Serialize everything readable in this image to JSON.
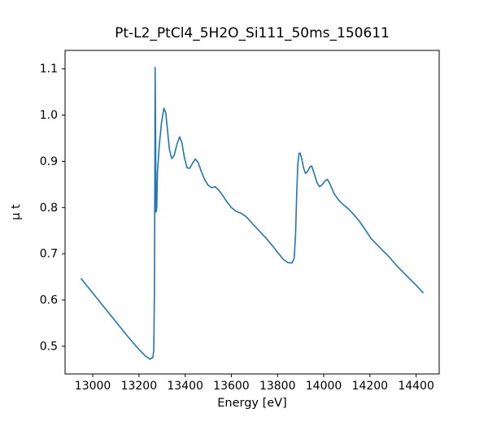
{
  "chart_data": {
    "type": "line",
    "title": "Pt-L2_PtCl4_5H2O_Si111_50ms_150611",
    "xlabel": "Energy [eV]",
    "ylabel": "µ t",
    "xlim": [
      12880,
      14500
    ],
    "ylim": [
      0.44,
      1.14
    ],
    "x_ticks": [
      13000,
      13200,
      13400,
      13600,
      13800,
      14000,
      14200,
      14400
    ],
    "y_ticks": [
      0.5,
      0.6,
      0.7,
      0.8,
      0.9,
      1.0,
      1.1
    ],
    "grid": false,
    "legend_position": "none",
    "line_color": "#1f77b4",
    "frame_color": "#000000",
    "points": [
      [
        12950,
        0.646
      ],
      [
        13000,
        0.615
      ],
      [
        13050,
        0.584
      ],
      [
        13100,
        0.553
      ],
      [
        13150,
        0.522
      ],
      [
        13200,
        0.493
      ],
      [
        13230,
        0.478
      ],
      [
        13248,
        0.472
      ],
      [
        13260,
        0.476
      ],
      [
        13264,
        0.49
      ],
      [
        13267,
        0.62
      ],
      [
        13269,
        0.9
      ],
      [
        13270,
        1.103
      ],
      [
        13272,
        0.96
      ],
      [
        13274,
        0.79
      ],
      [
        13277,
        0.8
      ],
      [
        13280,
        0.875
      ],
      [
        13288,
        0.935
      ],
      [
        13298,
        0.985
      ],
      [
        13308,
        1.015
      ],
      [
        13316,
        1.005
      ],
      [
        13324,
        0.965
      ],
      [
        13332,
        0.925
      ],
      [
        13342,
        0.906
      ],
      [
        13352,
        0.912
      ],
      [
        13365,
        0.938
      ],
      [
        13376,
        0.953
      ],
      [
        13386,
        0.94
      ],
      [
        13396,
        0.91
      ],
      [
        13408,
        0.886
      ],
      [
        13420,
        0.885
      ],
      [
        13432,
        0.896
      ],
      [
        13444,
        0.905
      ],
      [
        13456,
        0.898
      ],
      [
        13470,
        0.878
      ],
      [
        13485,
        0.86
      ],
      [
        13500,
        0.848
      ],
      [
        13515,
        0.843
      ],
      [
        13530,
        0.845
      ],
      [
        13545,
        0.838
      ],
      [
        13560,
        0.828
      ],
      [
        13580,
        0.813
      ],
      [
        13600,
        0.8
      ],
      [
        13620,
        0.792
      ],
      [
        13645,
        0.787
      ],
      [
        13665,
        0.78
      ],
      [
        13690,
        0.766
      ],
      [
        13720,
        0.75
      ],
      [
        13750,
        0.734
      ],
      [
        13780,
        0.716
      ],
      [
        13805,
        0.7
      ],
      [
        13825,
        0.688
      ],
      [
        13845,
        0.681
      ],
      [
        13862,
        0.68
      ],
      [
        13872,
        0.69
      ],
      [
        13878,
        0.74
      ],
      [
        13883,
        0.83
      ],
      [
        13888,
        0.895
      ],
      [
        13893,
        0.917
      ],
      [
        13898,
        0.918
      ],
      [
        13905,
        0.905
      ],
      [
        13913,
        0.885
      ],
      [
        13921,
        0.874
      ],
      [
        13930,
        0.878
      ],
      [
        13940,
        0.888
      ],
      [
        13948,
        0.89
      ],
      [
        13958,
        0.875
      ],
      [
        13970,
        0.855
      ],
      [
        13982,
        0.845
      ],
      [
        13994,
        0.85
      ],
      [
        14006,
        0.858
      ],
      [
        14016,
        0.861
      ],
      [
        14028,
        0.85
      ],
      [
        14045,
        0.83
      ],
      [
        14065,
        0.816
      ],
      [
        14085,
        0.806
      ],
      [
        14105,
        0.798
      ],
      [
        14130,
        0.785
      ],
      [
        14155,
        0.77
      ],
      [
        14180,
        0.752
      ],
      [
        14205,
        0.733
      ],
      [
        14240,
        0.715
      ],
      [
        14280,
        0.695
      ],
      [
        14320,
        0.672
      ],
      [
        14360,
        0.652
      ],
      [
        14400,
        0.632
      ],
      [
        14430,
        0.616
      ]
    ]
  }
}
